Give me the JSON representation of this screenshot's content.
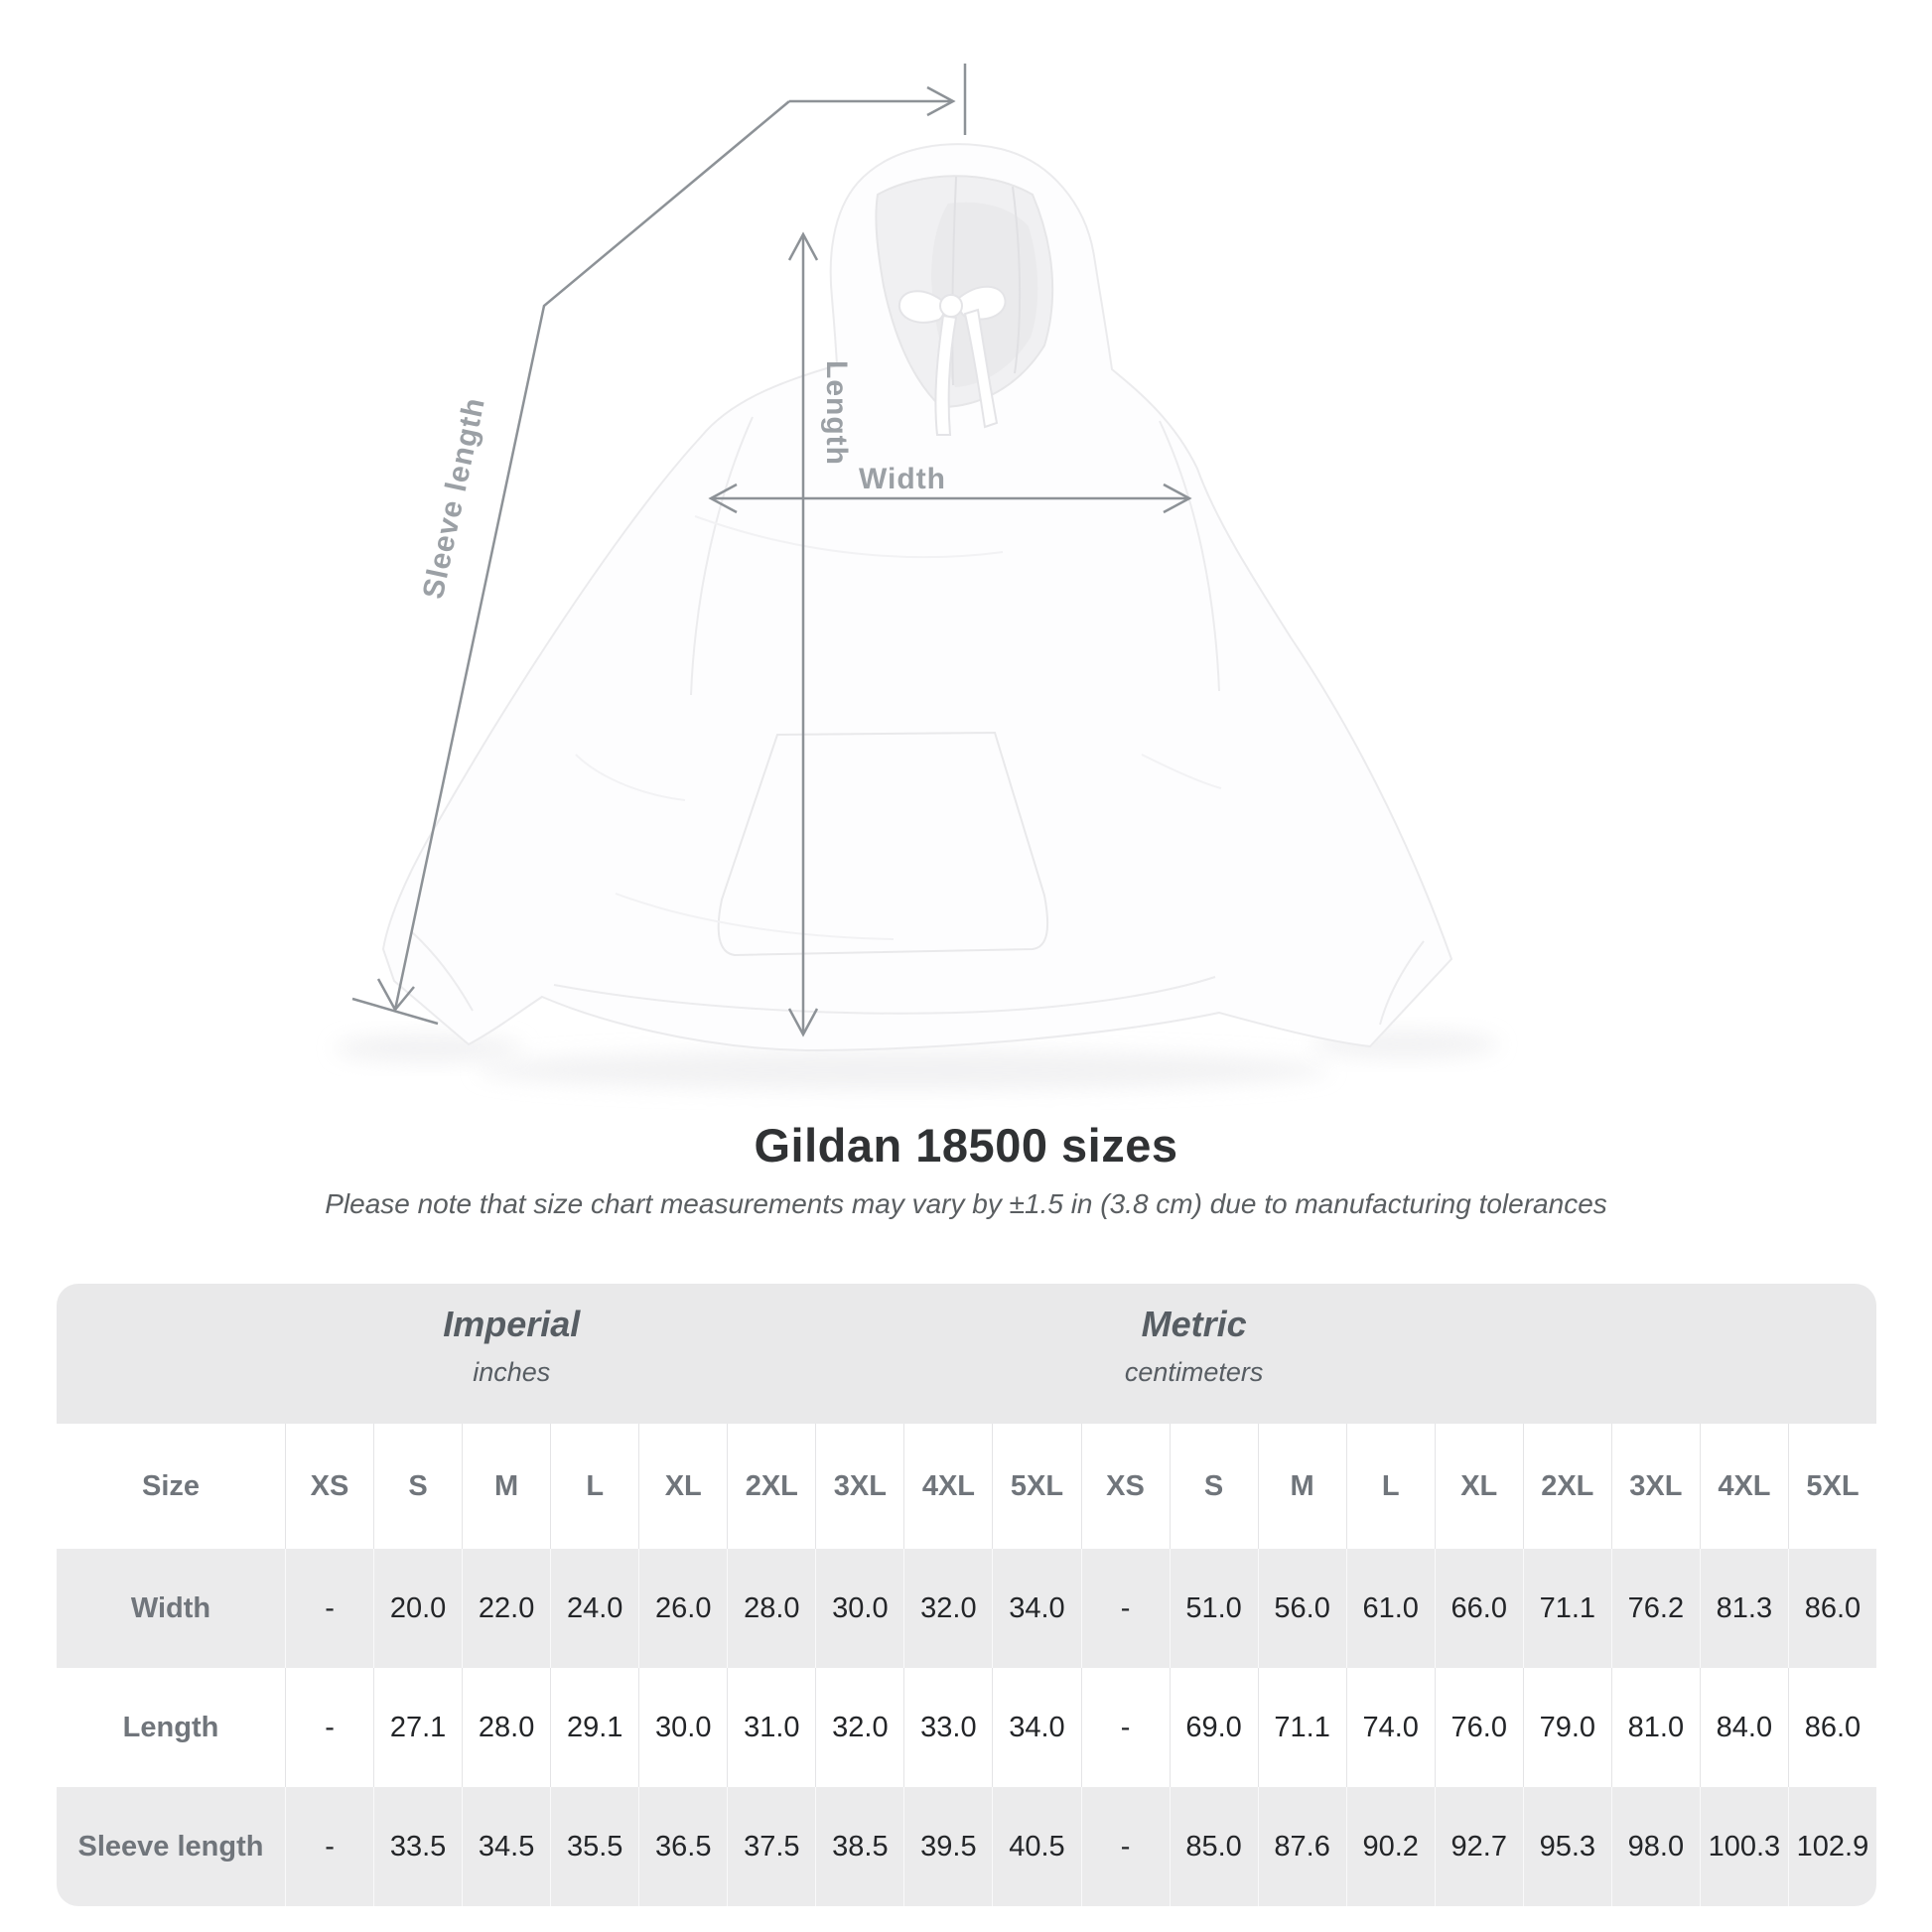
{
  "diagram": {
    "labels": {
      "length": "Length",
      "width": "Width",
      "sleeve_length": "Sleeve length"
    },
    "line_color": "#8d9297",
    "label_color": "#9ba0a5"
  },
  "title": "Gildan 18500 sizes",
  "subtitle": "Please note that size chart measurements may vary by ±1.5 in (3.8 cm) due to manufacturing tolerances",
  "table": {
    "unit_groups": [
      {
        "name": "Imperial",
        "unit": "inches"
      },
      {
        "name": "Metric",
        "unit": "centimeters"
      }
    ],
    "size_header": "Size",
    "sizes": [
      "XS",
      "S",
      "M",
      "L",
      "XL",
      "2XL",
      "3XL",
      "4XL",
      "5XL",
      "XS",
      "S",
      "M",
      "L",
      "XL",
      "2XL",
      "3XL",
      "4XL",
      "5XL"
    ],
    "rows": [
      {
        "label": "Width",
        "values": [
          "-",
          "20.0",
          "22.0",
          "24.0",
          "26.0",
          "28.0",
          "30.0",
          "32.0",
          "34.0",
          "-",
          "51.0",
          "56.0",
          "61.0",
          "66.0",
          "71.1",
          "76.2",
          "81.3",
          "86.0"
        ]
      },
      {
        "label": "Length",
        "values": [
          "-",
          "27.1",
          "28.0",
          "29.1",
          "30.0",
          "31.0",
          "32.0",
          "33.0",
          "34.0",
          "-",
          "69.0",
          "71.1",
          "74.0",
          "76.0",
          "79.0",
          "81.0",
          "84.0",
          "86.0"
        ]
      },
      {
        "label": "Sleeve length",
        "values": [
          "-",
          "33.5",
          "34.5",
          "35.5",
          "36.5",
          "37.5",
          "38.5",
          "39.5",
          "40.5",
          "-",
          "85.0",
          "87.6",
          "90.2",
          "92.7",
          "95.3",
          "98.0",
          "100.3",
          "102.9"
        ]
      }
    ]
  },
  "chart_data": {
    "type": "table",
    "title": "Gildan 18500 sizes",
    "note": "Measurements may vary by ±1.5 in (3.8 cm) due to manufacturing tolerances",
    "unit_groups": [
      "Imperial (inches)",
      "Metric (centimeters)"
    ],
    "sizes": [
      "XS",
      "S",
      "M",
      "L",
      "XL",
      "2XL",
      "3XL",
      "4XL",
      "5XL"
    ],
    "imperial": {
      "Width": [
        null,
        20.0,
        22.0,
        24.0,
        26.0,
        28.0,
        30.0,
        32.0,
        34.0
      ],
      "Length": [
        null,
        27.1,
        28.0,
        29.1,
        30.0,
        31.0,
        32.0,
        33.0,
        34.0
      ],
      "Sleeve length": [
        null,
        33.5,
        34.5,
        35.5,
        36.5,
        37.5,
        38.5,
        39.5,
        40.5
      ]
    },
    "metric": {
      "Width": [
        null,
        51.0,
        56.0,
        61.0,
        66.0,
        71.1,
        76.2,
        81.3,
        86.0
      ],
      "Length": [
        null,
        69.0,
        71.1,
        74.0,
        76.0,
        79.0,
        81.0,
        84.0,
        86.0
      ],
      "Sleeve length": [
        null,
        85.0,
        87.6,
        90.2,
        92.7,
        95.3,
        98.0,
        100.3,
        102.9
      ]
    }
  }
}
